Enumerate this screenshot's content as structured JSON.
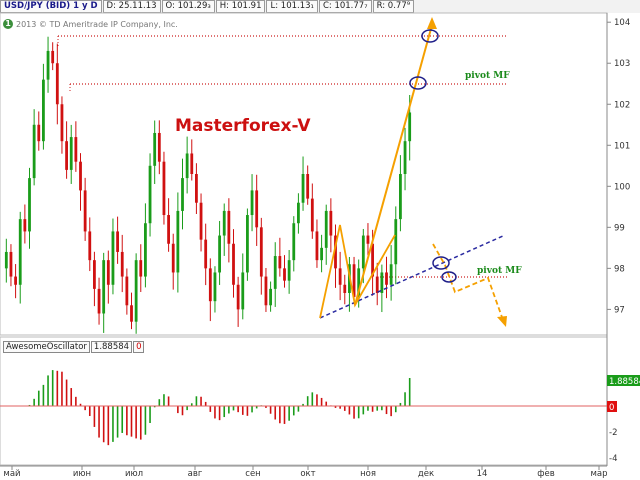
{
  "toolbar": {
    "symbol": "USD/JPY (BID) 1 y D",
    "date": "D: 25.11.13",
    "open": "O: 101.29₃",
    "high": "H: 101.91",
    "low": "L: 101.13₁",
    "close": "C: 101.77₇",
    "range": "R: 0.77⁹"
  },
  "watermark": {
    "badge": "1",
    "text": "2013 © TD Ameritrade IP Company, Inc."
  },
  "annotations": {
    "brand": "Masterforex-V",
    "pivot_top": "pivot MF",
    "pivot_bottom": "pivot MF"
  },
  "colors": {
    "up": "#1a9c1a",
    "down": "#d01010",
    "trend_up": "#f5a000",
    "trend_line": "#2a2aa0",
    "pivot": "#cc2020",
    "pivot_text": "#1a8a1a",
    "brand": "#cc1010"
  },
  "indicator": {
    "name": "AwesomeOscillator",
    "value": "1.88584",
    "flag": "0",
    "current_value": "1.88584"
  },
  "price_axis": [
    "104",
    "103",
    "102",
    "101",
    "100",
    "99",
    "98",
    "97"
  ],
  "osc_axis": [
    "2",
    "0",
    "-2",
    "-4"
  ],
  "time_axis": [
    "май",
    "июн",
    "июл",
    "авг",
    "сен",
    "окт",
    "ноя",
    "дек",
    "14",
    "фев",
    "мар"
  ],
  "chart_data": {
    "type": "candlestick",
    "symbol": "USD/JPY",
    "timeframe": "1 y D",
    "ylim": [
      96.4,
      104.2
    ],
    "pivot_levels": [
      103.7,
      102.5,
      97.6
    ],
    "closes": [
      98.4,
      97.8,
      97.6,
      99.2,
      98.9,
      100.2,
      101.5,
      101.1,
      102.6,
      103.3,
      103.0,
      102.0,
      101.1,
      100.4,
      101.2,
      100.6,
      99.9,
      98.9,
      98.2,
      97.5,
      96.9,
      98.2,
      97.6,
      98.9,
      98.4,
      97.8,
      97.1,
      96.7,
      98.2,
      97.8,
      99.1,
      100.5,
      101.3,
      100.6,
      99.3,
      98.6,
      97.9,
      99.4,
      100.2,
      100.8,
      100.3,
      99.6,
      98.7,
      98.0,
      97.2,
      97.9,
      98.8,
      99.4,
      98.6,
      97.6,
      97.0,
      97.9,
      99.3,
      99.9,
      99.0,
      97.8,
      97.1,
      97.5,
      98.3,
      98.0,
      97.7,
      98.2,
      99.1,
      99.6,
      100.3,
      99.7,
      98.9,
      98.2,
      98.5,
      99.4,
      98.8,
      98.0,
      97.6,
      97.4,
      98.1,
      97.3,
      98.0,
      98.8,
      98.6,
      97.8,
      97.4,
      97.9,
      97.6,
      98.1,
      99.2,
      100.3,
      101.1,
      101.8
    ]
  }
}
